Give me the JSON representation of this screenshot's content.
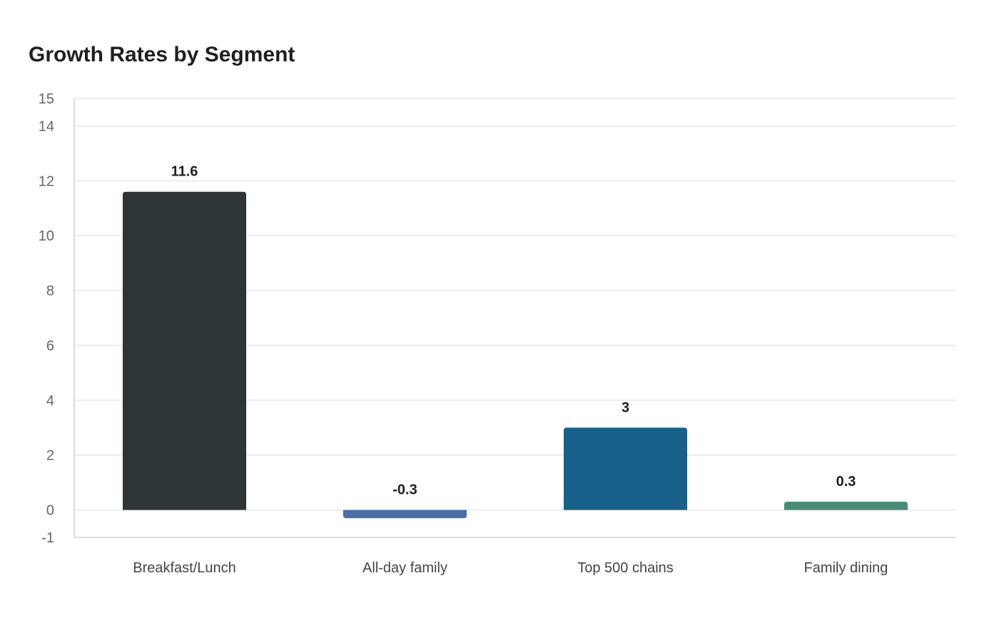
{
  "chart_data": {
    "type": "bar",
    "title": "Growth Rates by Segment",
    "xlabel": "",
    "ylabel": "",
    "categories": [
      "Breakfast/Lunch",
      "All-day family",
      "Top 500 chains",
      "Family dining"
    ],
    "values": [
      11.6,
      -0.3,
      3,
      0.3
    ],
    "data_labels": [
      "11.6",
      "-0.3",
      "3",
      "0.3"
    ],
    "bar_colors": [
      "#2e3538",
      "#4a6fa5",
      "#17608a",
      "#4a8a78"
    ],
    "yticks": [
      -1,
      0,
      2,
      4,
      6,
      8,
      10,
      12,
      14,
      15
    ],
    "ytick_labels": [
      "-1",
      "0",
      "2",
      "4",
      "6",
      "8",
      "10",
      "12",
      "14",
      "15"
    ],
    "ylim": [
      -1,
      15
    ],
    "grid": true,
    "legend": "none"
  }
}
